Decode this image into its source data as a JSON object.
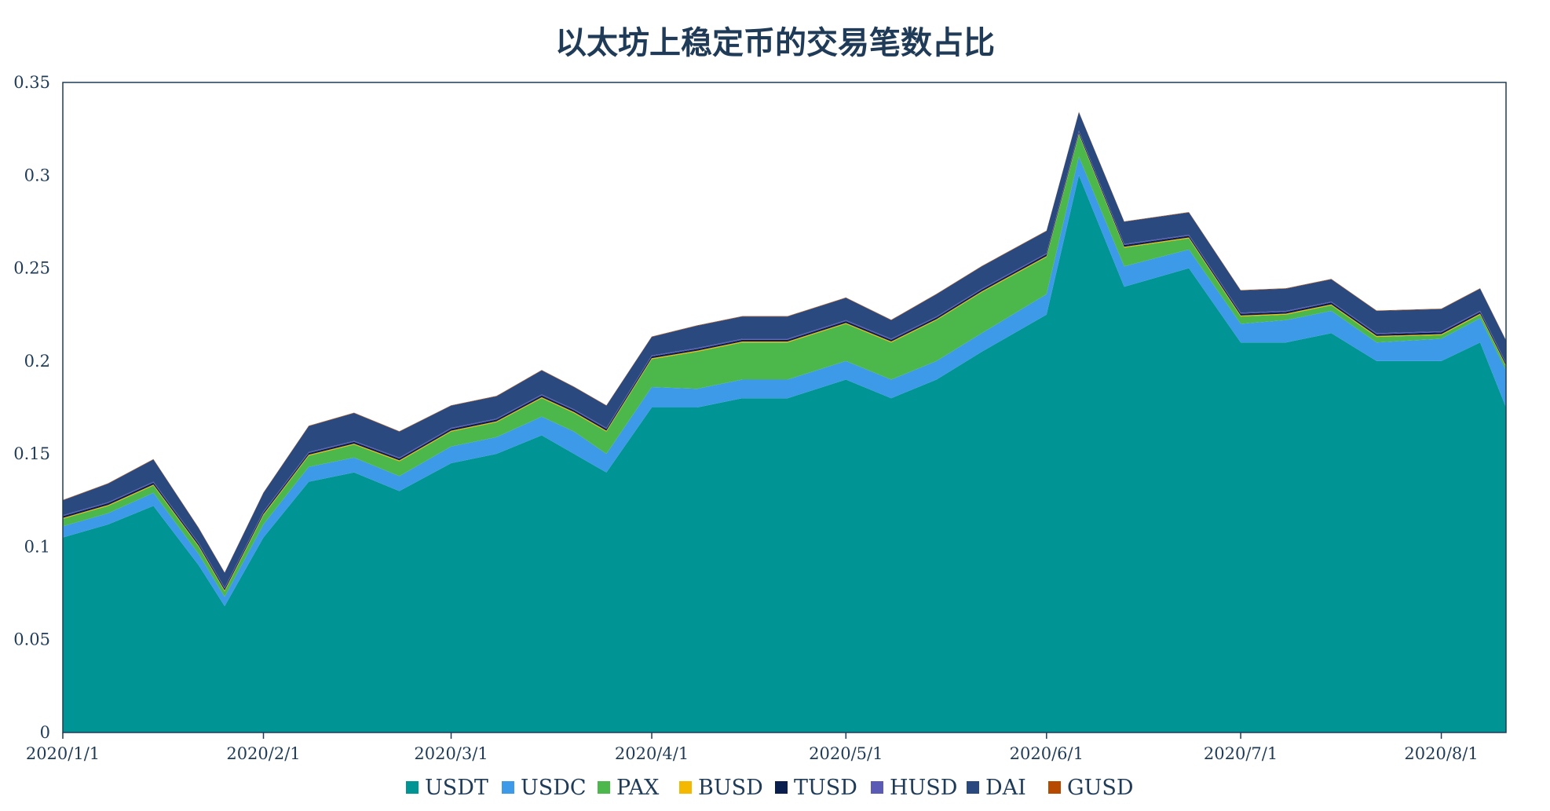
{
  "chart_data": {
    "type": "area",
    "stacked": true,
    "title": "以太坊上稳定币的交易笔数占比",
    "xlabel": "",
    "ylabel": "",
    "ylim": [
      0,
      0.35
    ],
    "yticks": [
      0,
      0.05,
      0.1,
      0.15,
      0.2,
      0.25,
      0.3,
      0.35
    ],
    "ytick_labels": [
      "0",
      "0.05",
      "0.1",
      "0.15",
      "0.2",
      "0.25",
      "0.3",
      "0.35"
    ],
    "xlim": [
      "2020-01-01",
      "2020-08-11"
    ],
    "xticks": [
      "2020-01-01",
      "2020-02-01",
      "2020-03-01",
      "2020-04-01",
      "2020-05-01",
      "2020-06-01",
      "2020-07-01",
      "2020-08-01"
    ],
    "xtick_labels": [
      "2020/1/1",
      "2020/2/1",
      "2020/3/1",
      "2020/4/1",
      "2020/5/1",
      "2020/6/1",
      "2020/7/1",
      "2020/8/1"
    ],
    "grid": false,
    "legend_position": "bottom",
    "dates": [
      "2020-01-01",
      "2020-01-08",
      "2020-01-15",
      "2020-01-22",
      "2020-01-26",
      "2020-02-01",
      "2020-02-08",
      "2020-02-15",
      "2020-02-22",
      "2020-03-01",
      "2020-03-08",
      "2020-03-15",
      "2020-03-20",
      "2020-03-25",
      "2020-04-01",
      "2020-04-08",
      "2020-04-15",
      "2020-04-22",
      "2020-05-01",
      "2020-05-08",
      "2020-05-15",
      "2020-05-22",
      "2020-06-01",
      "2020-06-06",
      "2020-06-13",
      "2020-06-23",
      "2020-07-01",
      "2020-07-08",
      "2020-07-15",
      "2020-07-22",
      "2020-08-01",
      "2020-08-07",
      "2020-08-11"
    ],
    "series": [
      {
        "name": "USDT",
        "color": "#009494",
        "values": [
          0.105,
          0.112,
          0.122,
          0.09,
          0.068,
          0.105,
          0.135,
          0.14,
          0.13,
          0.145,
          0.15,
          0.16,
          0.15,
          0.14,
          0.175,
          0.175,
          0.18,
          0.18,
          0.19,
          0.18,
          0.19,
          0.205,
          0.225,
          0.3,
          0.24,
          0.25,
          0.21,
          0.21,
          0.215,
          0.2,
          0.2,
          0.21,
          0.175
        ]
      },
      {
        "name": "USDC",
        "color": "#3d9ae8",
        "values": [
          0.006,
          0.006,
          0.007,
          0.006,
          0.005,
          0.007,
          0.008,
          0.008,
          0.008,
          0.009,
          0.009,
          0.01,
          0.012,
          0.01,
          0.011,
          0.01,
          0.01,
          0.01,
          0.01,
          0.01,
          0.01,
          0.01,
          0.011,
          0.01,
          0.011,
          0.01,
          0.01,
          0.012,
          0.012,
          0.01,
          0.012,
          0.013,
          0.02
        ]
      },
      {
        "name": "PAX",
        "color": "#4cb84c",
        "values": [
          0.004,
          0.004,
          0.004,
          0.004,
          0.003,
          0.005,
          0.006,
          0.007,
          0.008,
          0.008,
          0.008,
          0.01,
          0.01,
          0.012,
          0.015,
          0.02,
          0.02,
          0.02,
          0.02,
          0.02,
          0.022,
          0.022,
          0.02,
          0.012,
          0.01,
          0.006,
          0.004,
          0.003,
          0.003,
          0.003,
          0.002,
          0.002,
          0.002
        ]
      },
      {
        "name": "BUSD",
        "color": "#f5b800",
        "values": [
          0.0005,
          0.0005,
          0.0005,
          0.0005,
          0.0005,
          0.0005,
          0.0005,
          0.0005,
          0.0005,
          0.0005,
          0.0005,
          0.0005,
          0.0005,
          0.0005,
          0.0005,
          0.0005,
          0.0005,
          0.0005,
          0.0005,
          0.0005,
          0.0005,
          0.0005,
          0.0005,
          0.0005,
          0.0005,
          0.0005,
          0.0005,
          0.0005,
          0.0005,
          0.0005,
          0.0005,
          0.0005,
          0.0005
        ]
      },
      {
        "name": "TUSD",
        "color": "#0b1f4f",
        "values": [
          0.001,
          0.001,
          0.001,
          0.001,
          0.001,
          0.001,
          0.001,
          0.001,
          0.001,
          0.001,
          0.001,
          0.001,
          0.001,
          0.001,
          0.001,
          0.001,
          0.001,
          0.001,
          0.001,
          0.001,
          0.001,
          0.001,
          0.001,
          0.001,
          0.001,
          0.001,
          0.001,
          0.001,
          0.001,
          0.001,
          0.001,
          0.001,
          0.001
        ]
      },
      {
        "name": "HUSD",
        "color": "#5b5bb5",
        "values": [
          0.0005,
          0.0005,
          0.0005,
          0.0005,
          0.0005,
          0.0005,
          0.0005,
          0.0005,
          0.0005,
          0.0005,
          0.0005,
          0.0005,
          0.0005,
          0.0005,
          0.0005,
          0.0005,
          0.0005,
          0.0005,
          0.0005,
          0.0005,
          0.0005,
          0.0005,
          0.0005,
          0.0005,
          0.0005,
          0.0005,
          0.0005,
          0.0005,
          0.0005,
          0.0005,
          0.0005,
          0.0005,
          0.0005
        ]
      },
      {
        "name": "DAI",
        "color": "#2a4a7f",
        "values": [
          0.008,
          0.01,
          0.012,
          0.008,
          0.008,
          0.01,
          0.014,
          0.015,
          0.014,
          0.012,
          0.012,
          0.013,
          0.012,
          0.012,
          0.01,
          0.012,
          0.012,
          0.012,
          0.012,
          0.01,
          0.012,
          0.012,
          0.012,
          0.01,
          0.012,
          0.012,
          0.012,
          0.012,
          0.012,
          0.012,
          0.012,
          0.012,
          0.012
        ]
      },
      {
        "name": "GUSD",
        "color": "#b54a00",
        "values": [
          0.0002,
          0.0002,
          0.0002,
          0.0002,
          0.0002,
          0.0002,
          0.0002,
          0.0002,
          0.0002,
          0.0002,
          0.0002,
          0.0002,
          0.0002,
          0.0002,
          0.0002,
          0.0002,
          0.0002,
          0.0002,
          0.0002,
          0.0002,
          0.0002,
          0.0002,
          0.0002,
          0.0002,
          0.0002,
          0.0002,
          0.0002,
          0.0002,
          0.0002,
          0.0002,
          0.0002,
          0.0002,
          0.0002
        ]
      }
    ]
  }
}
